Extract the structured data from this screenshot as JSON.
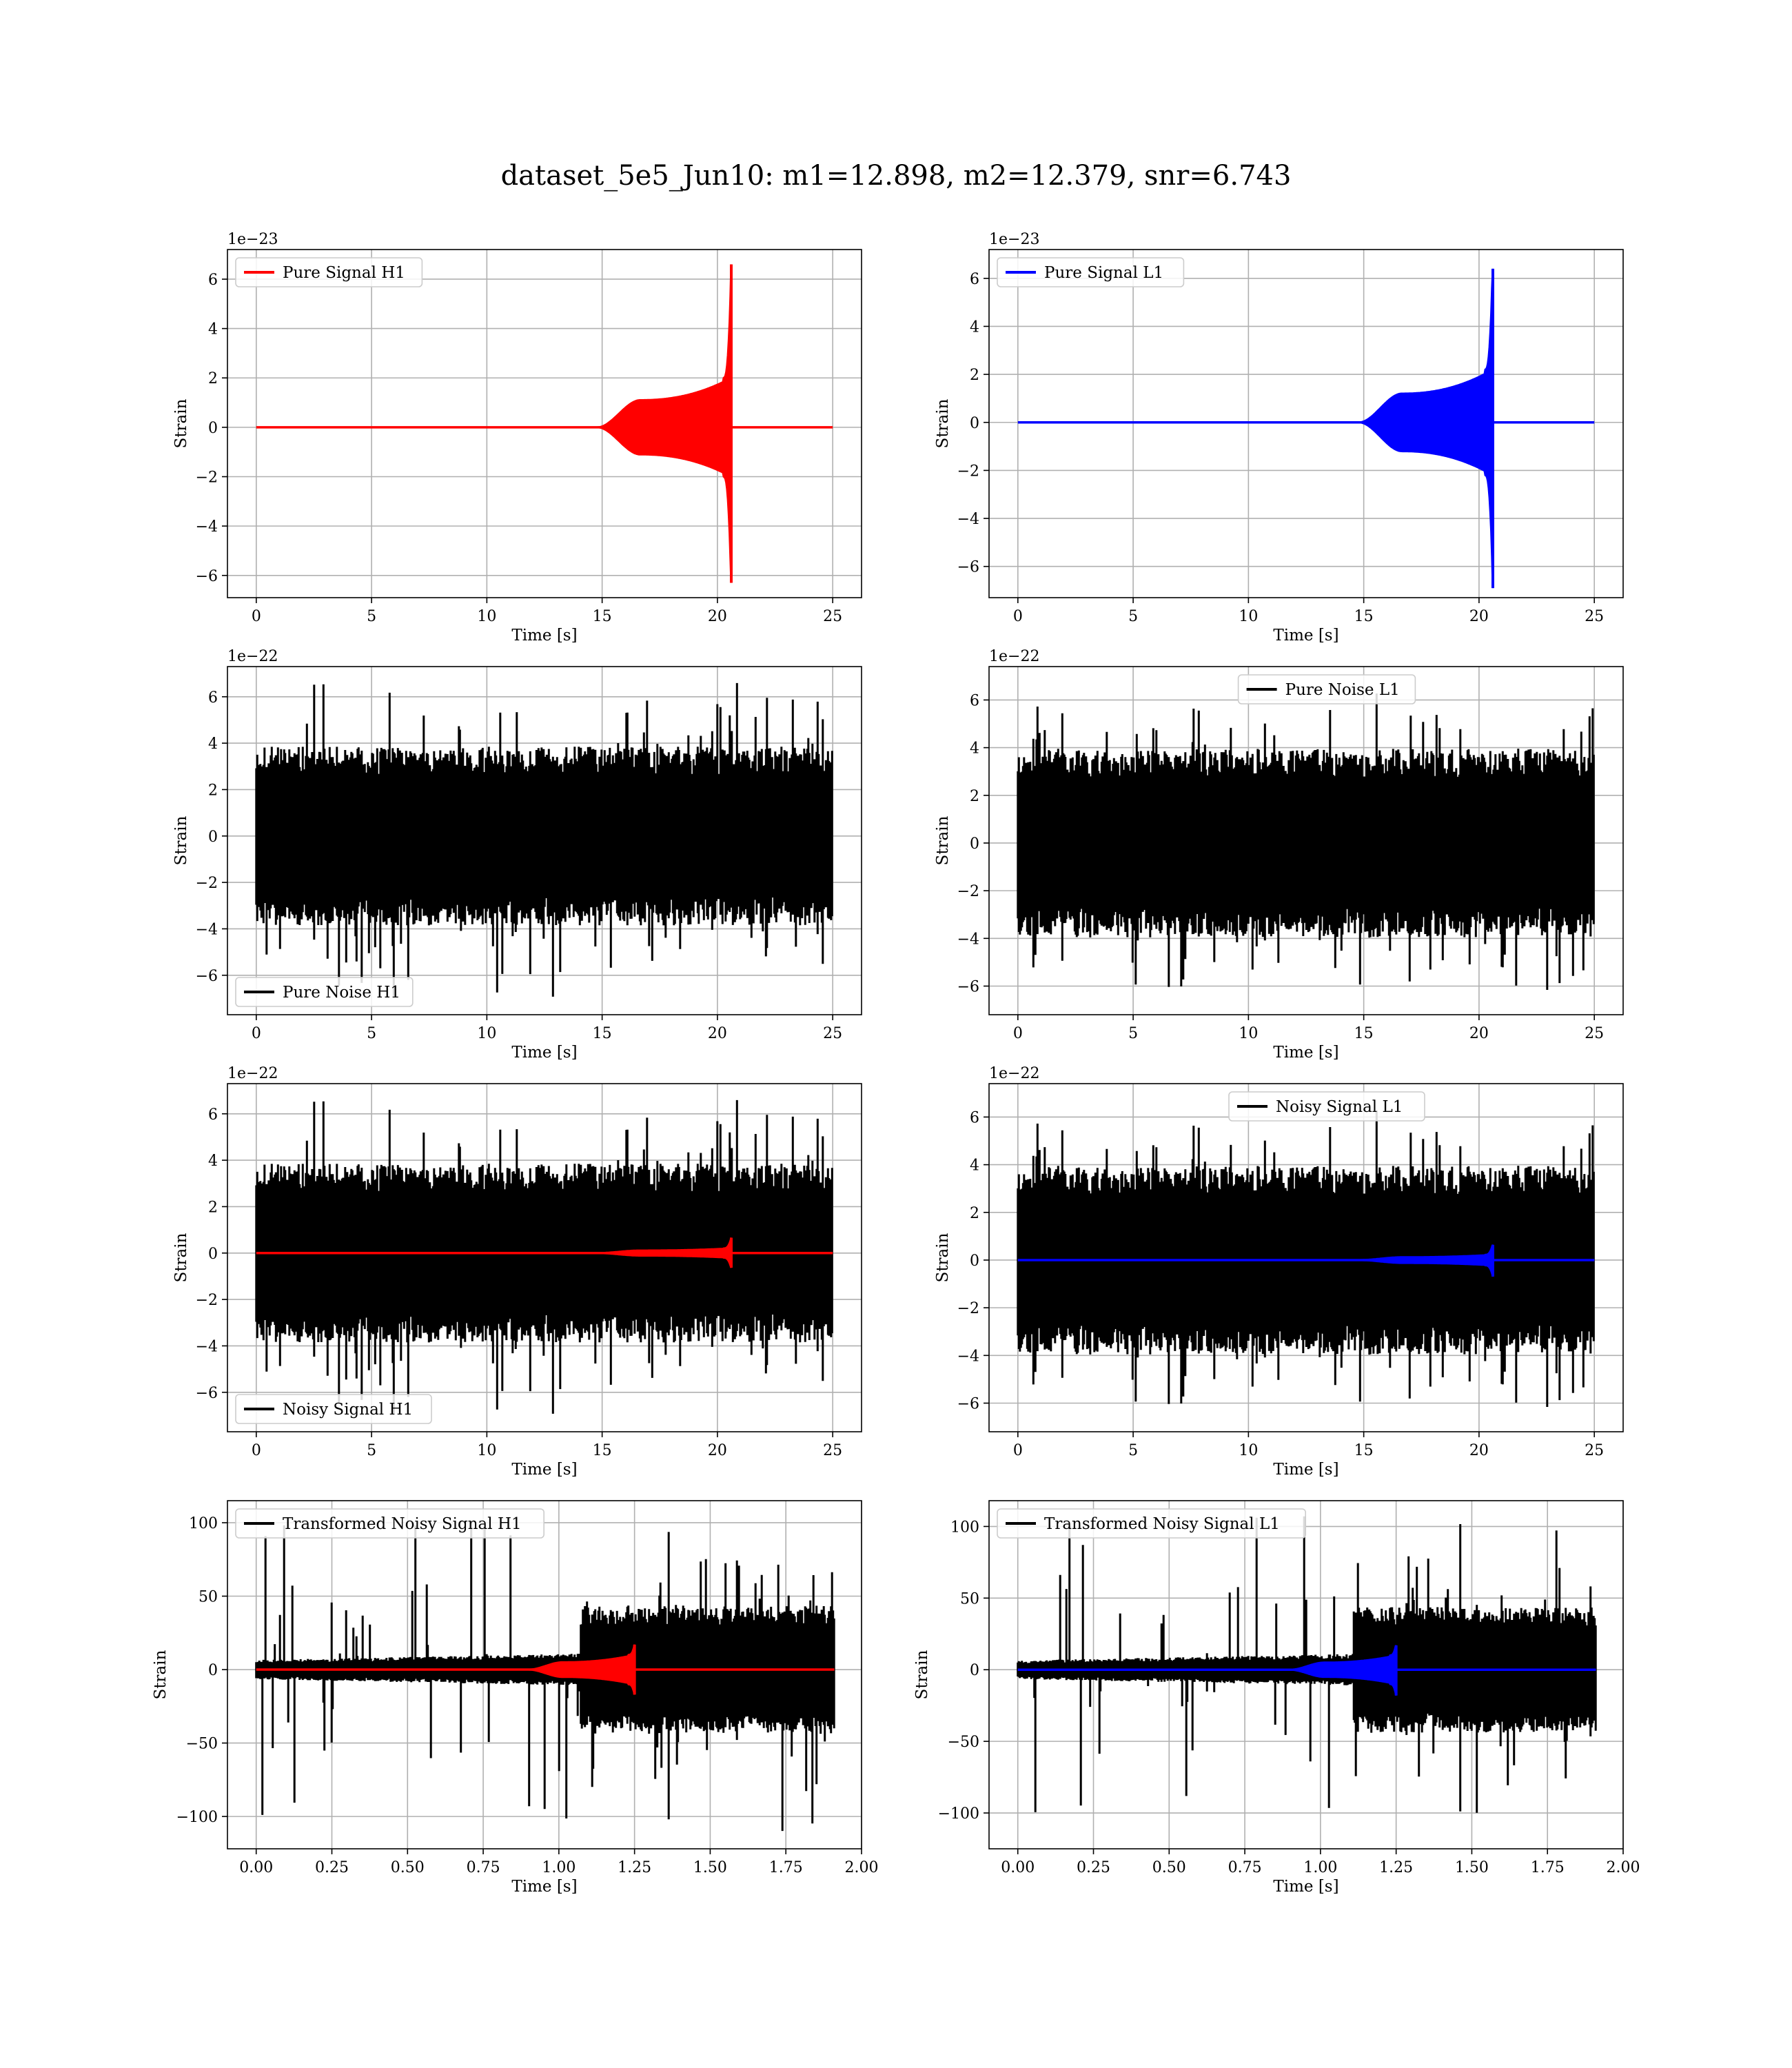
{
  "figure": {
    "suptitle": "dataset_5e5_Jun10: m1=12.898, m2=12.379, snr=6.743"
  },
  "colors": {
    "h1_signal": "#ff0000",
    "l1_signal": "#0000ff",
    "noise": "#000000",
    "grid": "#b0b0b0",
    "axes": "#000000"
  },
  "chart_data": [
    {
      "id": "pure-signal-h1",
      "type": "line",
      "xlabel": "Time [s]",
      "ylabel": "Strain",
      "offset_label": "1e−23",
      "xlim": [
        -1.25,
        26.25
      ],
      "ylim": [
        -6.9,
        7.2
      ],
      "xticks": [
        0,
        5,
        10,
        15,
        20,
        25
      ],
      "xtick_labels": [
        "0",
        "5",
        "10",
        "15",
        "20",
        "25"
      ],
      "yticks": [
        -6,
        -4,
        -2,
        0,
        2,
        4,
        6
      ],
      "ytick_labels": [
        "−6",
        "−4",
        "−2",
        "0",
        "2",
        "4",
        "6"
      ],
      "grid": true,
      "legend": {
        "position": "upper-left",
        "entries": [
          {
            "label": "Pure Signal H1",
            "color": "#ff0000"
          }
        ]
      },
      "series": [
        {
          "name": "Pure Signal H1",
          "color": "#ff0000",
          "kind": "chirp",
          "t_start": 0,
          "t_end": 25,
          "t_onset": 14.8,
          "t_merge": 20.6,
          "plateau": 1.1,
          "growth": 2.0,
          "peak_pos": 6.6,
          "peak_neg": -6.3,
          "tail": 0
        }
      ]
    },
    {
      "id": "pure-signal-l1",
      "type": "line",
      "xlabel": "Time [s]",
      "ylabel": "Strain",
      "offset_label": "1e−23",
      "xlim": [
        -1.25,
        26.25
      ],
      "ylim": [
        -7.3,
        7.2
      ],
      "xticks": [
        0,
        5,
        10,
        15,
        20,
        25
      ],
      "xtick_labels": [
        "0",
        "5",
        "10",
        "15",
        "20",
        "25"
      ],
      "yticks": [
        -6,
        -4,
        -2,
        0,
        2,
        4,
        6
      ],
      "ytick_labels": [
        "−6",
        "−4",
        "−2",
        "0",
        "2",
        "4",
        "6"
      ],
      "grid": true,
      "legend": {
        "position": "upper-left",
        "entries": [
          {
            "label": "Pure Signal L1",
            "color": "#0000ff"
          }
        ]
      },
      "series": [
        {
          "name": "Pure Signal L1",
          "color": "#0000ff",
          "kind": "chirp",
          "t_start": 0,
          "t_end": 25,
          "t_onset": 14.8,
          "t_merge": 20.6,
          "plateau": 1.2,
          "growth": 2.2,
          "peak_pos": 6.4,
          "peak_neg": -6.9,
          "tail": 0
        }
      ]
    },
    {
      "id": "pure-noise-h1",
      "type": "line",
      "xlabel": "Time [s]",
      "ylabel": "Strain",
      "offset_label": "1e−22",
      "xlim": [
        -1.25,
        26.25
      ],
      "ylim": [
        -7.7,
        7.3
      ],
      "xticks": [
        0,
        5,
        10,
        15,
        20,
        25
      ],
      "xtick_labels": [
        "0",
        "5",
        "10",
        "15",
        "20",
        "25"
      ],
      "yticks": [
        -6,
        -4,
        -2,
        0,
        2,
        4,
        6
      ],
      "ytick_labels": [
        "−6",
        "−4",
        "−2",
        "0",
        "2",
        "4",
        "6"
      ],
      "grid": true,
      "legend": {
        "position": "lower-left",
        "entries": [
          {
            "label": "Pure Noise H1",
            "color": "#000000"
          }
        ]
      },
      "series": [
        {
          "name": "Pure Noise H1",
          "color": "#000000",
          "kind": "noise",
          "t_start": 0,
          "t_end": 25,
          "band": 3.5,
          "spike_max": 6.6,
          "spike_min": -7.2,
          "seed": 11
        }
      ]
    },
    {
      "id": "pure-noise-l1",
      "type": "line",
      "xlabel": "Time [s]",
      "ylabel": "Strain",
      "offset_label": "1e−22",
      "xlim": [
        -1.25,
        26.25
      ],
      "ylim": [
        -7.2,
        7.4
      ],
      "xticks": [
        0,
        5,
        10,
        15,
        20,
        25
      ],
      "xtick_labels": [
        "0",
        "5",
        "10",
        "15",
        "20",
        "25"
      ],
      "yticks": [
        -6,
        -4,
        -2,
        0,
        2,
        4,
        6
      ],
      "ytick_labels": [
        "−6",
        "−4",
        "−2",
        "0",
        "2",
        "4",
        "6"
      ],
      "grid": true,
      "legend": {
        "position": "upper-center",
        "entries": [
          {
            "label": "Pure Noise L1",
            "color": "#000000"
          }
        ]
      },
      "series": [
        {
          "name": "Pure Noise L1",
          "color": "#000000",
          "kind": "noise",
          "t_start": 0,
          "t_end": 25,
          "band": 3.6,
          "spike_max": 6.7,
          "spike_min": -6.4,
          "seed": 23
        }
      ]
    },
    {
      "id": "noisy-signal-h1",
      "type": "line",
      "xlabel": "Time [s]",
      "ylabel": "Strain",
      "offset_label": "1e−22",
      "xlim": [
        -1.25,
        26.25
      ],
      "ylim": [
        -7.7,
        7.3
      ],
      "xticks": [
        0,
        5,
        10,
        15,
        20,
        25
      ],
      "xtick_labels": [
        "0",
        "5",
        "10",
        "15",
        "20",
        "25"
      ],
      "yticks": [
        -6,
        -4,
        -2,
        0,
        2,
        4,
        6
      ],
      "ytick_labels": [
        "−6",
        "−4",
        "−2",
        "0",
        "2",
        "4",
        "6"
      ],
      "grid": true,
      "legend": {
        "position": "lower-left",
        "entries": [
          {
            "label": "Noisy Signal H1",
            "color": "#000000"
          }
        ]
      },
      "series": [
        {
          "name": "Noisy Signal H1",
          "color": "#000000",
          "kind": "noise",
          "t_start": 0,
          "t_end": 25,
          "band": 3.5,
          "spike_max": 6.6,
          "spike_min": -7.2,
          "seed": 11
        },
        {
          "color": "#ff0000",
          "kind": "chirp",
          "t_start": 0,
          "t_end": 25,
          "t_onset": 14.8,
          "t_merge": 20.6,
          "plateau": 0.11,
          "growth": 0.2,
          "peak_pos": 0.66,
          "peak_neg": -0.63,
          "tail": 0
        }
      ]
    },
    {
      "id": "noisy-signal-l1",
      "type": "line",
      "xlabel": "Time [s]",
      "ylabel": "Strain",
      "offset_label": "1e−22",
      "xlim": [
        -1.25,
        26.25
      ],
      "ylim": [
        -7.2,
        7.4
      ],
      "xticks": [
        0,
        5,
        10,
        15,
        20,
        25
      ],
      "xtick_labels": [
        "0",
        "5",
        "10",
        "15",
        "20",
        "25"
      ],
      "yticks": [
        -6,
        -4,
        -2,
        0,
        2,
        4,
        6
      ],
      "ytick_labels": [
        "−6",
        "−4",
        "−2",
        "0",
        "2",
        "4",
        "6"
      ],
      "grid": true,
      "legend": {
        "position": "upper-center",
        "entries": [
          {
            "label": "Noisy Signal L1",
            "color": "#000000"
          }
        ]
      },
      "series": [
        {
          "name": "Noisy Signal L1",
          "color": "#000000",
          "kind": "noise",
          "t_start": 0,
          "t_end": 25,
          "band": 3.6,
          "spike_max": 6.7,
          "spike_min": -6.4,
          "seed": 23
        },
        {
          "color": "#0000ff",
          "kind": "chirp",
          "t_start": 0,
          "t_end": 25,
          "t_onset": 14.8,
          "t_merge": 20.6,
          "plateau": 0.12,
          "growth": 0.22,
          "peak_pos": 0.64,
          "peak_neg": -0.69,
          "tail": 0
        }
      ]
    },
    {
      "id": "transformed-h1",
      "type": "line",
      "xlabel": "Time [s]",
      "ylabel": "Strain",
      "offset_label": "",
      "xlim": [
        -0.095,
        2.0
      ],
      "ylim": [
        -122,
        115
      ],
      "xticks": [
        0.0,
        0.25,
        0.5,
        0.75,
        1.0,
        1.25,
        1.5,
        1.75,
        2.0
      ],
      "xtick_labels": [
        "0.00",
        "0.25",
        "0.50",
        "0.75",
        "1.00",
        "1.25",
        "1.50",
        "1.75",
        "2.00"
      ],
      "yticks": [
        -100,
        -50,
        0,
        50,
        100
      ],
      "ytick_labels": [
        "−100",
        "−50",
        "0",
        "50",
        "100"
      ],
      "grid": true,
      "legend": {
        "position": "upper-left",
        "entries": [
          {
            "label": "Transformed Noisy Signal H1",
            "color": "#000000"
          }
        ]
      },
      "series": [
        {
          "name": "Transformed Noisy Signal H1",
          "color": "#000000",
          "kind": "tnoise",
          "t_start": 0,
          "t_end": 1.91,
          "t_jump": 1.07,
          "low_band": 6,
          "high_band": 40,
          "spike_max": 105,
          "spike_min": -112,
          "seed": 37
        },
        {
          "color": "#ff0000",
          "kind": "chirp",
          "t_start": 0,
          "t_end": 1.91,
          "t_onset": 0.9,
          "t_merge": 1.25,
          "plateau": 5,
          "growth": 10,
          "peak_pos": 17,
          "peak_neg": -17,
          "tail": 0
        }
      ]
    },
    {
      "id": "transformed-l1",
      "type": "line",
      "xlabel": "Time [s]",
      "ylabel": "Strain",
      "offset_label": "",
      "xlim": [
        -0.095,
        2.0
      ],
      "ylim": [
        -125,
        118
      ],
      "xticks": [
        0.0,
        0.25,
        0.5,
        0.75,
        1.0,
        1.25,
        1.5,
        1.75,
        2.0
      ],
      "xtick_labels": [
        "0.00",
        "0.25",
        "0.50",
        "0.75",
        "1.00",
        "1.25",
        "1.50",
        "1.75",
        "2.00"
      ],
      "yticks": [
        -100,
        -50,
        0,
        50,
        100
      ],
      "ytick_labels": [
        "−100",
        "−50",
        "0",
        "50",
        "100"
      ],
      "grid": true,
      "legend": {
        "position": "upper-left",
        "entries": [
          {
            "label": "Transformed Noisy Signal L1",
            "color": "#000000"
          }
        ]
      },
      "series": [
        {
          "name": "Transformed Noisy Signal L1",
          "color": "#000000",
          "kind": "tnoise",
          "t_start": 0,
          "t_end": 1.91,
          "t_jump": 1.11,
          "low_band": 6,
          "high_band": 40,
          "spike_max": 108,
          "spike_min": -109,
          "seed": 53
        },
        {
          "color": "#0000ff",
          "kind": "chirp",
          "t_start": 0,
          "t_end": 1.91,
          "t_onset": 0.9,
          "t_merge": 1.25,
          "plateau": 5,
          "growth": 10,
          "peak_pos": 17,
          "peak_neg": -18,
          "tail": 0
        }
      ]
    }
  ]
}
